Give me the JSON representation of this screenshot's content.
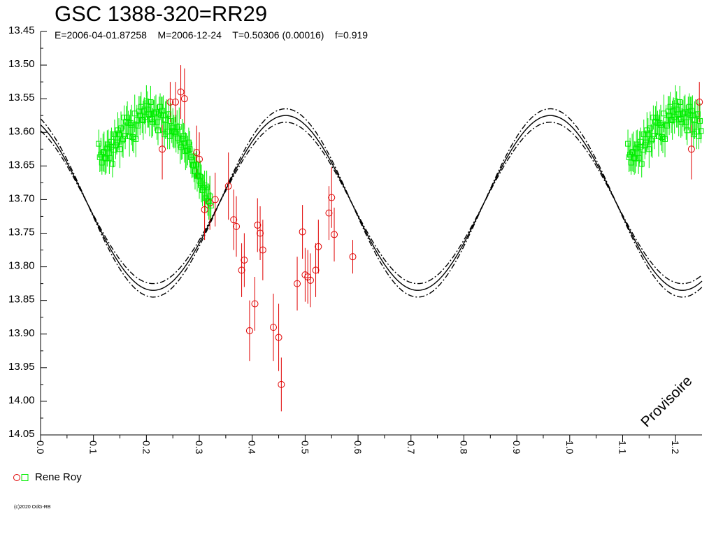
{
  "title": "GSC 1388-320=RR29",
  "subtitle": "E=2006-04-01.87258    M=2006-12-24    T=0.50306 (0.00016)    f=0.919",
  "watermark": "Provisoire",
  "copyright": "(c)2020 OdG-RB",
  "legend": {
    "label": "Rene Roy"
  },
  "colors": {
    "red": "#e00000",
    "green": "#00ee00",
    "curve": "#000000",
    "background": "#ffffff"
  },
  "chart_data": {
    "type": "scatter",
    "xlim": [
      0.0,
      1.25
    ],
    "ylim": [
      14.05,
      13.45
    ],
    "x_reversed": false,
    "y_inverted": true,
    "grid": false,
    "legend_position": "bottom-left",
    "x_ticks": [
      "0.0",
      "0.1",
      "0.2",
      "0.3",
      "0.4",
      "0.5",
      "0.6",
      "0.7",
      "0.8",
      "0.9",
      "1.0",
      "1.1",
      "1.2"
    ],
    "y_ticks": [
      "13.45",
      "13.50",
      "13.55",
      "13.60",
      "13.65",
      "13.70",
      "13.75",
      "13.80",
      "13.85",
      "13.90",
      "13.95",
      "14.00",
      "14.05"
    ],
    "model_curves": [
      {
        "style": "solid",
        "form": "A + B*cos(4*pi*(x - phase))",
        "A": 13.705,
        "B": 0.13,
        "phase": 0.213
      },
      {
        "style": "dash-dot",
        "form": "A + B*cos(4*pi*(x - phase))",
        "A": 13.705,
        "B": 0.14,
        "phase": 0.213
      },
      {
        "style": "dash-dot",
        "form": "A + B*cos(4*pi*(x - phase))",
        "A": 13.705,
        "B": 0.12,
        "phase": 0.213
      }
    ],
    "series": [
      {
        "name": "Rene Roy",
        "marker": "circle",
        "color": "#e00000",
        "x": [
          0.23,
          0.245,
          0.255,
          0.265,
          0.272,
          0.295,
          0.3,
          0.31,
          0.32,
          0.33,
          0.355,
          0.365,
          0.37,
          0.38,
          0.385,
          0.395,
          0.405,
          0.41,
          0.415,
          0.42,
          0.44,
          0.45,
          0.455,
          0.485,
          0.495,
          0.5,
          0.505,
          0.51,
          0.52,
          0.525,
          0.545,
          0.55,
          0.555,
          0.59
        ],
        "y": [
          13.625,
          13.555,
          13.555,
          13.54,
          13.55,
          13.63,
          13.64,
          13.715,
          13.705,
          13.7,
          13.68,
          13.73,
          13.74,
          13.805,
          13.79,
          13.895,
          13.855,
          13.738,
          13.75,
          13.775,
          13.89,
          13.905,
          13.975,
          13.825,
          13.748,
          13.812,
          13.815,
          13.82,
          13.805,
          13.77,
          13.72,
          13.697,
          13.752,
          13.785
        ],
        "err": [
          0.045,
          0.03,
          0.03,
          0.04,
          0.045,
          0.04,
          0.04,
          0.045,
          0.04,
          0.04,
          0.05,
          0.045,
          0.045,
          0.04,
          0.04,
          0.045,
          0.04,
          0.04,
          0.04,
          0.045,
          0.05,
          0.05,
          0.04,
          0.04,
          0.04,
          0.04,
          0.04,
          0.04,
          0.04,
          0.04,
          0.04,
          0.045,
          0.04,
          0.025
        ]
      },
      {
        "name": "Rene Roy",
        "marker": "square",
        "color": "#00ee00",
        "x": [
          0.11,
          0.112,
          0.114,
          0.116,
          0.118,
          0.12,
          0.122,
          0.124,
          0.126,
          0.128,
          0.13,
          0.132,
          0.134,
          0.136,
          0.138,
          0.14,
          0.142,
          0.144,
          0.146,
          0.148,
          0.15,
          0.152,
          0.154,
          0.156,
          0.158,
          0.16,
          0.162,
          0.164,
          0.166,
          0.168,
          0.17,
          0.172,
          0.174,
          0.176,
          0.178,
          0.18,
          0.182,
          0.184,
          0.186,
          0.188,
          0.19,
          0.192,
          0.194,
          0.196,
          0.198,
          0.2,
          0.202,
          0.204,
          0.206,
          0.208,
          0.21,
          0.212,
          0.214,
          0.216,
          0.218,
          0.22,
          0.222,
          0.224,
          0.226,
          0.228,
          0.23,
          0.232,
          0.234,
          0.236,
          0.238,
          0.24,
          0.242,
          0.244,
          0.246,
          0.248,
          0.25,
          0.252,
          0.254,
          0.256,
          0.258,
          0.26,
          0.262,
          0.264,
          0.266,
          0.268,
          0.27,
          0.272,
          0.274,
          0.276,
          0.278,
          0.28,
          0.282,
          0.284,
          0.286,
          0.288,
          0.29,
          0.292,
          0.294,
          0.296,
          0.298,
          0.3,
          0.302,
          0.304,
          0.306,
          0.308,
          0.31,
          0.312,
          0.314,
          0.316,
          0.318,
          0.32,
          0.322
        ],
        "y": [
          13.617,
          13.637,
          13.633,
          13.645,
          13.63,
          13.629,
          13.638,
          13.639,
          13.624,
          13.618,
          13.638,
          13.622,
          13.614,
          13.647,
          13.626,
          13.603,
          13.619,
          13.615,
          13.597,
          13.603,
          13.625,
          13.594,
          13.612,
          13.61,
          13.578,
          13.605,
          13.584,
          13.578,
          13.586,
          13.606,
          13.586,
          13.589,
          13.607,
          13.609,
          13.572,
          13.61,
          13.582,
          13.59,
          13.569,
          13.575,
          13.562,
          13.581,
          13.582,
          13.568,
          13.577,
          13.554,
          13.566,
          13.573,
          13.581,
          13.555,
          13.58,
          13.585,
          13.572,
          13.572,
          13.57,
          13.585,
          13.597,
          13.572,
          13.562,
          13.574,
          13.568,
          13.575,
          13.603,
          13.582,
          13.575,
          13.599,
          13.573,
          13.606,
          13.583,
          13.598,
          13.593,
          13.599,
          13.6,
          13.602,
          13.592,
          13.609,
          13.592,
          13.619,
          13.622,
          13.61,
          13.605,
          13.616,
          13.628,
          13.627,
          13.627,
          13.615,
          13.625,
          13.637,
          13.641,
          13.649,
          13.649,
          13.658,
          13.648,
          13.665,
          13.664,
          13.672,
          13.666,
          13.676,
          13.686,
          13.682,
          13.679,
          13.698,
          13.682,
          13.702,
          13.703,
          13.695,
          13.709
        ],
        "err": [
          0.021,
          0.022,
          0.025,
          0.018,
          0.028,
          0.03,
          0.025,
          0.022,
          0.027,
          0.022,
          0.024,
          0.024,
          0.021,
          0.02,
          0.026,
          0.022,
          0.021,
          0.018,
          0.027,
          0.024,
          0.028,
          0.025,
          0.024,
          0.028,
          0.018,
          0.02,
          0.023,
          0.024,
          0.018,
          0.03,
          0.02,
          0.03,
          0.021,
          0.022,
          0.028,
          0.027,
          0.023,
          0.02,
          0.023,
          0.029,
          0.022,
          0.02,
          0.029,
          0.02,
          0.025,
          0.024,
          0.027,
          0.02,
          0.025,
          0.024,
          0.028,
          0.021,
          0.02,
          0.026,
          0.026,
          0.026,
          0.022,
          0.025,
          0.02,
          0.027,
          0.021,
          0.03,
          0.02,
          0.028,
          0.024,
          0.026,
          0.021,
          0.019,
          0.027,
          0.018,
          0.029,
          0.025,
          0.023,
          0.028,
          0.025,
          0.023,
          0.029,
          0.028,
          0.019,
          0.03,
          0.019,
          0.029,
          0.028,
          0.026,
          0.022,
          0.022,
          0.027,
          0.025,
          0.027,
          0.018,
          0.025,
          0.027,
          0.02,
          0.023,
          0.019,
          0.027,
          0.024,
          0.028,
          0.024,
          0.019,
          0.022,
          0.02,
          0.025,
          0.022,
          0.027,
          0.03,
          0.02
        ]
      },
      {
        "name": "Rene Roy",
        "marker": "circle",
        "color": "#e00000",
        "x": [
          1.23,
          1.245
        ],
        "y": [
          13.625,
          13.555
        ],
        "err": [
          0.045,
          0.03
        ]
      },
      {
        "name": "Rene Roy",
        "marker": "square",
        "color": "#00ee00",
        "x": [
          1.11,
          1.112,
          1.114,
          1.116,
          1.118,
          1.12,
          1.122,
          1.124,
          1.126,
          1.128,
          1.13,
          1.132,
          1.134,
          1.136,
          1.138,
          1.14,
          1.142,
          1.144,
          1.146,
          1.148,
          1.15,
          1.152,
          1.154,
          1.156,
          1.158,
          1.16,
          1.162,
          1.164,
          1.166,
          1.168,
          1.17,
          1.172,
          1.174,
          1.176,
          1.178,
          1.18,
          1.182,
          1.184,
          1.186,
          1.188,
          1.19,
          1.192,
          1.194,
          1.196,
          1.198,
          1.2,
          1.202,
          1.204,
          1.206,
          1.208,
          1.21,
          1.212,
          1.214,
          1.216,
          1.218,
          1.22,
          1.222,
          1.224,
          1.226,
          1.228,
          1.23,
          1.232,
          1.234,
          1.236,
          1.238,
          1.24,
          1.242,
          1.244,
          1.246,
          1.248
        ],
        "y": [
          13.617,
          13.637,
          13.633,
          13.645,
          13.63,
          13.629,
          13.638,
          13.639,
          13.624,
          13.618,
          13.638,
          13.622,
          13.614,
          13.647,
          13.626,
          13.603,
          13.619,
          13.615,
          13.597,
          13.603,
          13.625,
          13.594,
          13.612,
          13.61,
          13.578,
          13.605,
          13.584,
          13.578,
          13.586,
          13.606,
          13.586,
          13.589,
          13.607,
          13.609,
          13.572,
          13.61,
          13.582,
          13.59,
          13.569,
          13.575,
          13.562,
          13.581,
          13.582,
          13.568,
          13.577,
          13.554,
          13.566,
          13.573,
          13.581,
          13.555,
          13.58,
          13.585,
          13.572,
          13.572,
          13.57,
          13.585,
          13.597,
          13.572,
          13.562,
          13.574,
          13.568,
          13.575,
          13.603,
          13.582,
          13.575,
          13.599,
          13.573,
          13.606,
          13.583,
          13.598
        ],
        "err": [
          0.021,
          0.022,
          0.025,
          0.018,
          0.028,
          0.03,
          0.025,
          0.022,
          0.027,
          0.022,
          0.024,
          0.024,
          0.021,
          0.02,
          0.026,
          0.022,
          0.021,
          0.018,
          0.027,
          0.024,
          0.028,
          0.025,
          0.024,
          0.028,
          0.018,
          0.02,
          0.023,
          0.024,
          0.018,
          0.03,
          0.02,
          0.03,
          0.021,
          0.022,
          0.028,
          0.027,
          0.023,
          0.02,
          0.023,
          0.029,
          0.022,
          0.02,
          0.029,
          0.02,
          0.025,
          0.024,
          0.027,
          0.02,
          0.025,
          0.024,
          0.028,
          0.021,
          0.02,
          0.026,
          0.026,
          0.026,
          0.022,
          0.025,
          0.02,
          0.027,
          0.021,
          0.03,
          0.02,
          0.028,
          0.024,
          0.026,
          0.021,
          0.019,
          0.027,
          0.018
        ]
      }
    ]
  }
}
